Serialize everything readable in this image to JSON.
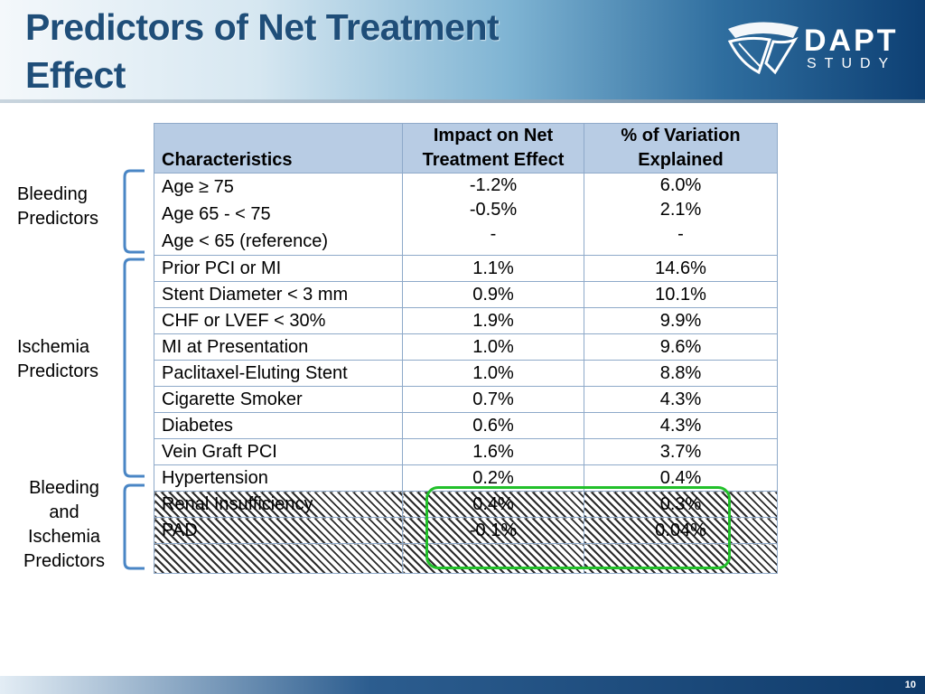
{
  "title": "Predictors of Net Treatment Effect",
  "logo": {
    "main": "DAPT",
    "sub": "STUDY"
  },
  "colors": {
    "header_title": "#1f4e79",
    "table_header_bg": "#b8cce4",
    "highlight_box": "#22c02a",
    "bracket": "#4a86c5"
  },
  "side_labels": {
    "bleeding": [
      "Bleeding",
      "Predictors"
    ],
    "ischemia": [
      "Ischemia",
      "Predictors"
    ],
    "both": [
      "Bleeding",
      "and",
      "Ischemia",
      "Predictors"
    ]
  },
  "table": {
    "headers": {
      "characteristics": "Characteristics",
      "impact": [
        "Impact on Net",
        "Treatment Effect"
      ],
      "variation": [
        "% of Variation",
        "Explained"
      ]
    },
    "age_group": {
      "labels": [
        "Age  ≥ 75",
        "Age 65 - < 75",
        "Age < 65    (reference)"
      ],
      "impact": [
        "-1.2%",
        "-0.5%",
        "-"
      ],
      "variation": [
        "6.0%",
        "2.1%",
        "-"
      ]
    },
    "rows": [
      {
        "label": "Prior PCI or MI",
        "impact": "1.1%",
        "variation": "14.6%"
      },
      {
        "label": "Stent Diameter < 3 mm",
        "impact": "0.9%",
        "variation": "10.1%"
      },
      {
        "label": "CHF or LVEF < 30%",
        "impact": "1.9%",
        "variation": "9.9%"
      },
      {
        "label": "MI at Presentation",
        "impact": "1.0%",
        "variation": "9.6%"
      },
      {
        "label": "Paclitaxel-Eluting Stent",
        "impact": "1.0%",
        "variation": "8.8%"
      },
      {
        "label": "Cigarette Smoker",
        "impact": "0.7%",
        "variation": "4.3%"
      },
      {
        "label": "Diabetes",
        "impact": "0.6%",
        "variation": "4.3%"
      },
      {
        "label": "Vein Graft PCI",
        "impact": "1.6%",
        "variation": "3.7%"
      },
      {
        "label": "Hypertension",
        "impact": "0.2%",
        "variation": "0.4%"
      }
    ],
    "hatched_rows": [
      {
        "label": "Renal Insufficiency",
        "impact": "0.4%",
        "variation": "0.3%"
      },
      {
        "label": "PAD",
        "impact": "-0.1%",
        "variation": "0.04%"
      }
    ]
  },
  "page_number": "10"
}
